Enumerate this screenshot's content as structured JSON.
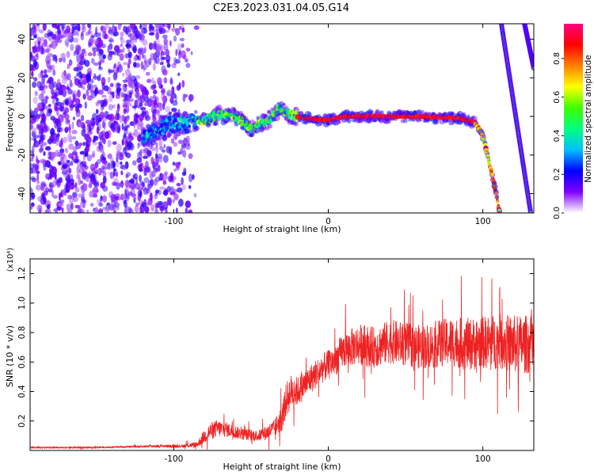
{
  "title": "C2E3.2023.031.04.05.G14",
  "chart_data": [
    {
      "type": "heatmap",
      "xlabel": "Height of straight line (km)",
      "ylabel": "Frequency (Hz)",
      "xlim": [
        -193,
        133
      ],
      "ylim": [
        -50,
        48
      ],
      "xticks": [
        -100,
        0,
        100
      ],
      "yticks": [
        -40,
        -20,
        0,
        20,
        40
      ],
      "colorbar": {
        "label": "Normalized spectral amplitude",
        "range": [
          0.0,
          0.98
        ],
        "ticks": [
          0.0,
          0.2,
          0.4,
          0.6,
          0.8
        ],
        "colormap": [
          "#ffffff",
          "#8000ff",
          "#0000ff",
          "#00c0ff",
          "#00ff80",
          "#40ff00",
          "#ffff00",
          "#ff8000",
          "#ff0000",
          "#ff0080"
        ]
      },
      "noise_region_x": [
        -193,
        -85
      ],
      "signal_track": [
        {
          "x": -120,
          "y": -12
        },
        {
          "x": -110,
          "y": -6
        },
        {
          "x": -100,
          "y": -4
        },
        {
          "x": -90,
          "y": -3
        },
        {
          "x": -80,
          "y": -2
        },
        {
          "x": -70,
          "y": 1
        },
        {
          "x": -60,
          "y": 0
        },
        {
          "x": -50,
          "y": -6
        },
        {
          "x": -40,
          "y": -3
        },
        {
          "x": -32,
          "y": 4
        },
        {
          "x": -25,
          "y": 1
        },
        {
          "x": -15,
          "y": -1
        },
        {
          "x": 0,
          "y": -2
        },
        {
          "x": 10,
          "y": 0
        },
        {
          "x": 30,
          "y": 0
        },
        {
          "x": 60,
          "y": 0
        },
        {
          "x": 85,
          "y": -1
        },
        {
          "x": 95,
          "y": -3
        },
        {
          "x": 100,
          "y": -10
        },
        {
          "x": 106,
          "y": -30
        },
        {
          "x": 111,
          "y": -50
        }
      ],
      "aliased_lines": [
        {
          "points": [
            {
              "x": 112,
              "y": 48
            },
            {
              "x": 131,
              "y": -50
            }
          ]
        },
        {
          "points": [
            {
              "x": 127,
              "y": 48
            },
            {
              "x": 133,
              "y": 25
            }
          ]
        }
      ]
    },
    {
      "type": "line",
      "xlabel": "Height of straight line (km)",
      "ylabel": "SNR (10 * v/v)",
      "yscale_label": "(x10⁴)",
      "xlim": [
        -193,
        133
      ],
      "ylim": [
        0.0,
        1.3
      ],
      "xticks": [
        -100,
        0,
        100
      ],
      "yticks": [
        0.2,
        0.4,
        0.6,
        0.8,
        1.0,
        1.2
      ],
      "series": [
        {
          "color": "#ee2222",
          "x": [
            -193,
            -170,
            -150,
            -130,
            -110,
            -95,
            -85,
            -78,
            -72,
            -65,
            -55,
            -45,
            -40,
            -35,
            -30,
            -27,
            -24,
            -20,
            -15,
            -10,
            -5,
            0,
            5,
            10,
            20,
            30,
            40,
            50,
            60,
            70,
            80,
            90,
            100,
            110,
            120,
            133
          ],
          "y": [
            0.02,
            0.02,
            0.02,
            0.025,
            0.03,
            0.03,
            0.04,
            0.12,
            0.15,
            0.14,
            0.11,
            0.1,
            0.12,
            0.15,
            0.22,
            0.35,
            0.4,
            0.4,
            0.45,
            0.5,
            0.55,
            0.58,
            0.62,
            0.68,
            0.72,
            0.7,
            0.74,
            0.72,
            0.7,
            0.72,
            0.74,
            0.72,
            0.73,
            0.74,
            0.72,
            0.72
          ],
          "spread": [
            0.005,
            0.005,
            0.005,
            0.005,
            0.01,
            0.01,
            0.02,
            0.06,
            0.06,
            0.05,
            0.04,
            0.04,
            0.05,
            0.06,
            0.09,
            0.12,
            0.12,
            0.1,
            0.1,
            0.1,
            0.1,
            0.1,
            0.11,
            0.12,
            0.14,
            0.14,
            0.15,
            0.15,
            0.15,
            0.16,
            0.17,
            0.18,
            0.18,
            0.19,
            0.2,
            0.2
          ]
        }
      ]
    }
  ]
}
